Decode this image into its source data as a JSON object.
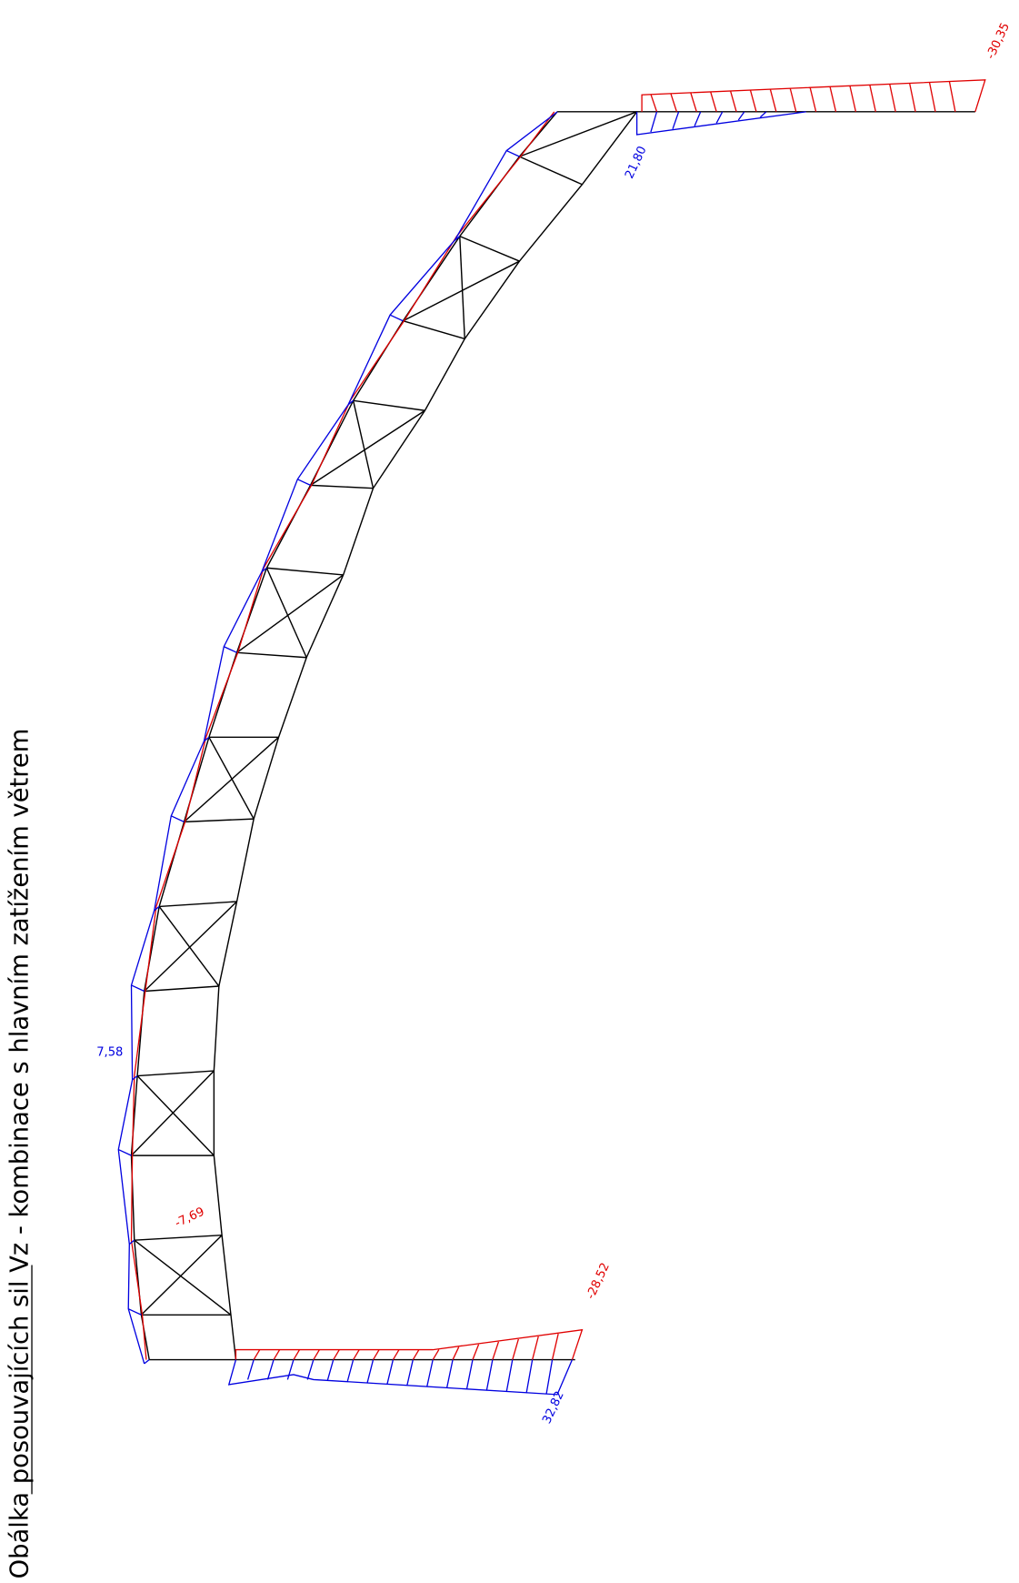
{
  "title": "Obálka posouvajících sil Vz - kombinace s hlavním zatížením větrem",
  "labels": [
    "-30,35",
    "21,80",
    "7,58",
    "-7,69",
    "-28,52",
    "32,82"
  ]
}
